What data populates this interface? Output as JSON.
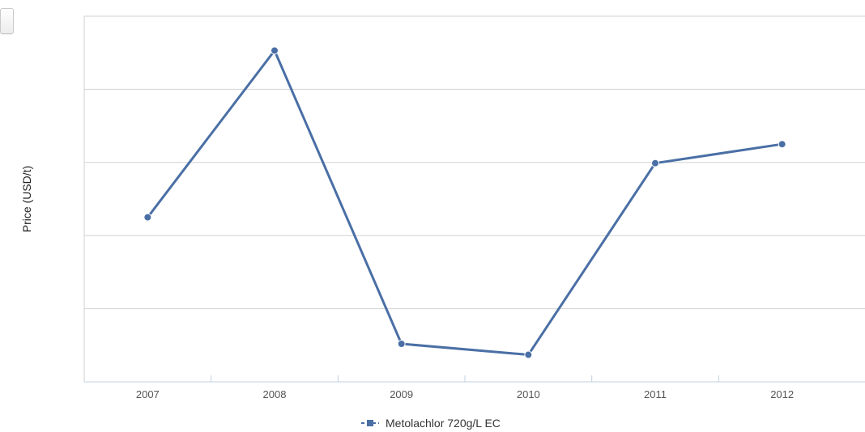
{
  "chart_data": {
    "type": "line",
    "title": "",
    "xlabel": "",
    "ylabel": "Price (USD/t)",
    "categories": [
      "2007",
      "2008",
      "2009",
      "2010",
      "2011",
      "2012"
    ],
    "series": [
      {
        "name": "Metolachlor 720g/L EC",
        "values": [
          2.25,
          4.53,
          0.52,
          0.37,
          2.99,
          3.25
        ]
      }
    ],
    "ylim": [
      0,
      5
    ],
    "y_tick_labels_shown": false,
    "grid": true,
    "legend": "bottom-center",
    "colors": {
      "series": "#4a6fa5",
      "grid": "#d2d2d2",
      "axis": "#c0d0e0"
    }
  }
}
